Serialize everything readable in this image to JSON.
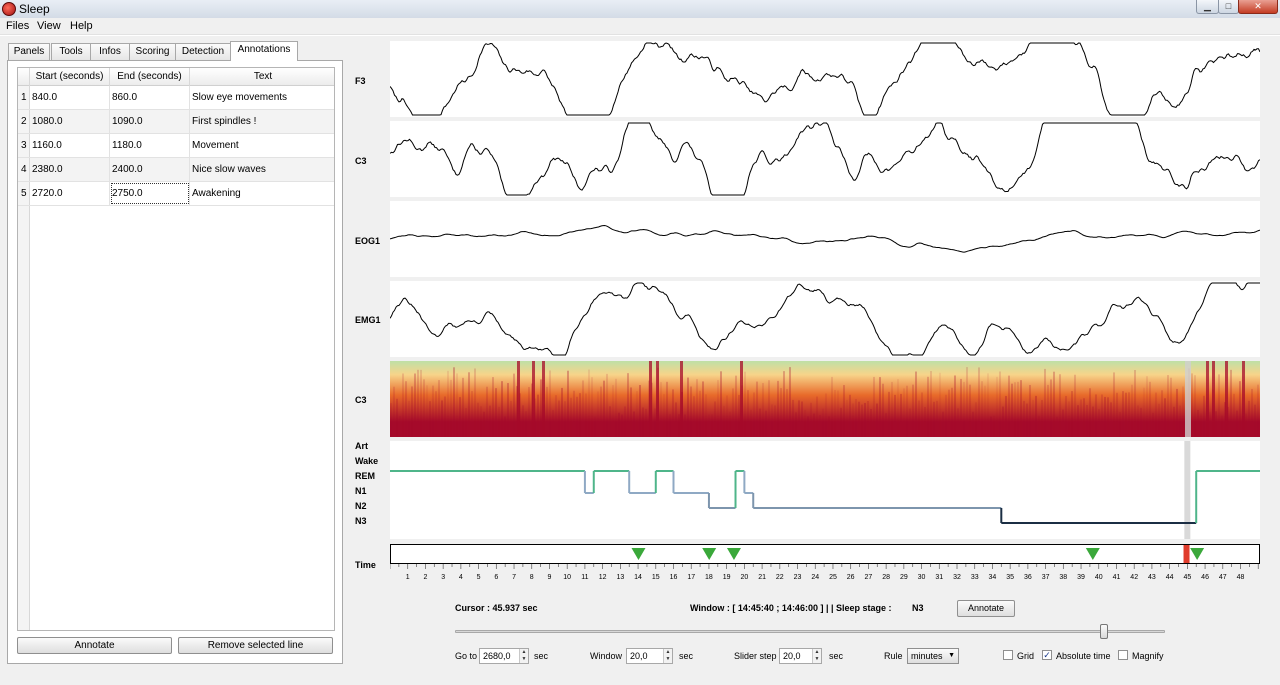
{
  "window": {
    "title": "Sleep",
    "minimize_glyph": "▁",
    "maximize_glyph": "□",
    "close_glyph": "✕"
  },
  "menu": {
    "files": "Files",
    "view": "View",
    "help": "Help"
  },
  "tabs": {
    "panels": "Panels",
    "tools": "Tools",
    "infos": "Infos",
    "scoring": "Scoring",
    "detection": "Detection",
    "annotations": "Annotations",
    "active": "annotations"
  },
  "annotations": {
    "headers": {
      "start": "Start (seconds)",
      "end": "End (seconds)",
      "text": "Text"
    },
    "rows": [
      {
        "num": "1",
        "start": "840.0",
        "end": "860.0",
        "text": "Slow eye movements"
      },
      {
        "num": "2",
        "start": "1080.0",
        "end": "1090.0",
        "text": "First spindles !"
      },
      {
        "num": "3",
        "start": "1160.0",
        "end": "1180.0",
        "text": "Movement"
      },
      {
        "num": "4",
        "start": "2380.0",
        "end": "2400.0",
        "text": "Nice slow waves"
      },
      {
        "num": "5",
        "start": "2720.0",
        "end": "2750.0",
        "text": "Awakening"
      }
    ],
    "annotate_label": "Annotate",
    "remove_label": "Remove selected line"
  },
  "channels": {
    "f3": "F3",
    "c3": "C3",
    "eog1": "EOG1",
    "emg1": "EMG1",
    "spectrogram": "C3"
  },
  "hypnogram": {
    "labels": {
      "art": "Art",
      "wake": "Wake",
      "rem": "REM",
      "n1": "N1",
      "n2": "N2",
      "n3": "N3"
    },
    "time_label": "Time",
    "colors": {
      "rem": "#4fb58a",
      "n1": "#8fa9c4",
      "n2": "#7d95ad",
      "n3": "#1b2e44",
      "cursor": "#d9d9d9"
    },
    "steps": [
      {
        "start_min": 0,
        "end_min": 11,
        "stage": "REM"
      },
      {
        "start_min": 11,
        "end_min": 11.5,
        "stage": "N1"
      },
      {
        "start_min": 11.5,
        "end_min": 13.5,
        "stage": "REM"
      },
      {
        "start_min": 13.5,
        "end_min": 15,
        "stage": "N1"
      },
      {
        "start_min": 15,
        "end_min": 16,
        "stage": "REM"
      },
      {
        "start_min": 16,
        "end_min": 18,
        "stage": "N1"
      },
      {
        "start_min": 18,
        "end_min": 19.5,
        "stage": "N2"
      },
      {
        "start_min": 19.5,
        "end_min": 20,
        "stage": "REM"
      },
      {
        "start_min": 20,
        "end_min": 20.5,
        "stage": "N1"
      },
      {
        "start_min": 20.5,
        "end_min": 34.5,
        "stage": "N2"
      },
      {
        "start_min": 34.5,
        "end_min": 45.5,
        "stage": "N3"
      },
      {
        "start_min": 45.5,
        "end_min": 49.1,
        "stage": "REM"
      }
    ],
    "cursor_min": 45.0
  },
  "timeline": {
    "marker_color": "#3aa83a",
    "cursor_color": "#e03c2c",
    "markers_min": [
      14,
      18,
      19.4,
      39.7,
      45.6
    ],
    "cursor_min": 45.0,
    "ticks": [
      "1",
      "2",
      "3",
      "4",
      "5",
      "6",
      "7",
      "8",
      "9",
      "10",
      "11",
      "12",
      "13",
      "14",
      "15",
      "16",
      "17",
      "18",
      "19",
      "20",
      "21",
      "22",
      "23",
      "24",
      "25",
      "26",
      "27",
      "28",
      "29",
      "30",
      "31",
      "32",
      "33",
      "34",
      "35",
      "36",
      "37",
      "38",
      "39",
      "40",
      "41",
      "42",
      "43",
      "44",
      "45",
      "46",
      "47",
      "48"
    ],
    "max_min": 49.1
  },
  "spectrogram_colors": {
    "high": "#a50a2a",
    "mid": "#e86a2a",
    "low": "#f7d48a",
    "top": "#bfe0a6"
  },
  "status": {
    "cursor": "Cursor : 45.937 sec",
    "window": "Window : [ 14:45:40 ; 14:46:00 ] | | Sleep stage :",
    "stage_value": "N3",
    "annotate_label": "Annotate"
  },
  "controls": {
    "slider_fraction": 0.915,
    "goto_label": "Go to",
    "goto_value": "2680,0",
    "goto_unit": "sec",
    "window_label": "Window",
    "window_value": "20,0",
    "window_unit": "sec",
    "slider_step_label": "Slider step",
    "slider_step_value": "20,0",
    "slider_step_unit": "sec",
    "rule_label": "Rule",
    "rule_value": "minutes",
    "grid_label": "Grid",
    "grid_checked": false,
    "abstime_label": "Absolute time",
    "abstime_checked": true,
    "magnify_label": "Magnify",
    "magnify_checked": false,
    "spin_up": "▲",
    "spin_down": "▼",
    "combo_arrow": "▼",
    "check_mark": "✓"
  }
}
